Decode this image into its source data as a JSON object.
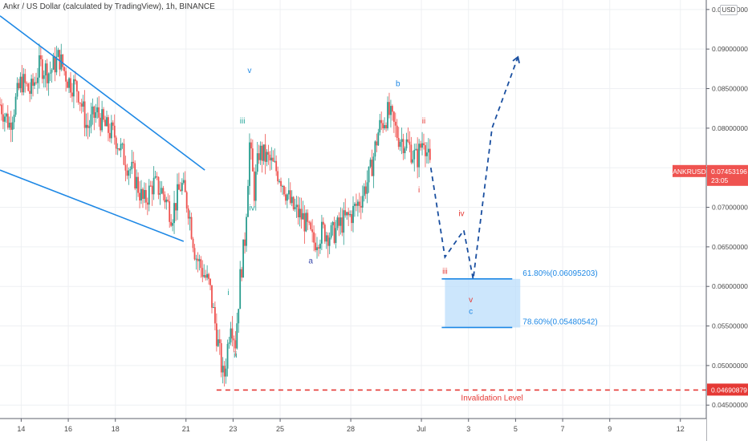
{
  "header": {
    "title": "Ankr / US Dollar (calculated by TradingView), 1h, BINANCE",
    "currency": "USD"
  },
  "colors": {
    "bull": "#2a9d8f",
    "bear": "#ef5350",
    "trend_line": "#1e88e5",
    "projection": "#1a4fa0",
    "invalidation": "#e53935",
    "fib_zone": "#bbdefb",
    "wave_red": "#e53935",
    "wave_blue": "#1e88e5",
    "wave_teal": "#26a69a",
    "wave_navy": "#3949ab"
  },
  "chart_data": {
    "type": "candlestick",
    "title": "Ankr / US Dollar (calculated by TradingView), 1h, BINANCE",
    "symbol": "ANKRUSD",
    "timeframe": "1h",
    "exchange": "BINANCE",
    "ylim": [
      0.0433,
      0.0962
    ],
    "price_ticks": [
      "0.09500000",
      "0.09000000",
      "0.08500000",
      "0.08000000",
      "0.07500000",
      "0.07000000",
      "0.06500000",
      "0.06000000",
      "0.05500000",
      "0.05000000",
      "0.04500000"
    ],
    "price_tick_values": [
      0.095,
      0.09,
      0.085,
      0.08,
      0.075,
      0.07,
      0.065,
      0.06,
      0.055,
      0.05,
      0.045
    ],
    "time_ticks": [
      "14",
      "16",
      "18",
      "21",
      "23",
      "25",
      "28",
      "Jul",
      "3",
      "5",
      "7",
      "9",
      "12"
    ],
    "time_tick_days": [
      14,
      16,
      18,
      21,
      23,
      25,
      28,
      31,
      33,
      35,
      37,
      39,
      42
    ],
    "x_domain_days": [
      13.1,
      43.1
    ],
    "current_price": {
      "value": 0.07453196,
      "label": "0.07453196",
      "countdown": "23:05",
      "symbol_label": "ANKRUSD"
    },
    "price_path": [
      [
        13.1,
        0.083
      ],
      [
        13.5,
        0.0805
      ],
      [
        14.0,
        0.086
      ],
      [
        14.4,
        0.0845
      ],
      [
        14.8,
        0.088
      ],
      [
        15.2,
        0.087
      ],
      [
        15.6,
        0.089
      ],
      [
        16.0,
        0.086
      ],
      [
        16.4,
        0.085
      ],
      [
        16.8,
        0.08
      ],
      [
        17.2,
        0.082
      ],
      [
        17.6,
        0.08
      ],
      [
        18.0,
        0.079
      ],
      [
        18.4,
        0.076
      ],
      [
        18.8,
        0.074
      ],
      [
        19.2,
        0.0705
      ],
      [
        19.6,
        0.073
      ],
      [
        20.0,
        0.072
      ],
      [
        20.4,
        0.069
      ],
      [
        20.8,
        0.073
      ],
      [
        21.1,
        0.07
      ],
      [
        21.4,
        0.064
      ],
      [
        21.7,
        0.062
      ],
      [
        22.0,
        0.06
      ],
      [
        22.3,
        0.054
      ],
      [
        22.6,
        0.048
      ],
      [
        22.9,
        0.056
      ],
      [
        23.1,
        0.053
      ],
      [
        23.3,
        0.061
      ],
      [
        23.5,
        0.066
      ],
      [
        23.7,
        0.078
      ],
      [
        23.9,
        0.072
      ],
      [
        24.1,
        0.077
      ],
      [
        24.5,
        0.076
      ],
      [
        25.0,
        0.074
      ],
      [
        25.5,
        0.07
      ],
      [
        26.0,
        0.0685
      ],
      [
        26.4,
        0.0655
      ],
      [
        26.8,
        0.067
      ],
      [
        27.2,
        0.0665
      ],
      [
        27.6,
        0.068
      ],
      [
        28.0,
        0.069
      ],
      [
        28.4,
        0.071
      ],
      [
        28.8,
        0.074
      ],
      [
        29.2,
        0.08
      ],
      [
        29.6,
        0.082
      ],
      [
        30.0,
        0.079
      ],
      [
        30.4,
        0.078
      ],
      [
        30.8,
        0.076
      ],
      [
        31.1,
        0.079
      ],
      [
        31.4,
        0.0745
      ]
    ],
    "trend_lines": [
      {
        "from": [
          13.1,
          0.0942
        ],
        "to": [
          21.8,
          0.0747
        ]
      },
      {
        "from": [
          13.1,
          0.0747
        ],
        "to": [
          20.9,
          0.0657
        ]
      }
    ],
    "projection_path": [
      [
        31.4,
        0.075
      ],
      [
        32.0,
        0.0637
      ],
      [
        32.8,
        0.0671
      ],
      [
        33.2,
        0.0609
      ],
      [
        34.0,
        0.08
      ],
      [
        35.1,
        0.089
      ]
    ],
    "fib_levels": [
      {
        "label": "61.80%(0.06095203)",
        "value": 0.06095203
      },
      {
        "label": "78.60%(0.05480542)",
        "value": 0.05480542
      }
    ],
    "fib_zone_days": [
      32.0,
      35.2
    ],
    "invalidation": {
      "value": 0.04690879,
      "label": "0.04690879",
      "text": "Invalidation Level"
    },
    "wave_labels": [
      {
        "text": "v",
        "day": 23.7,
        "value": 0.087,
        "color": "blue"
      },
      {
        "text": "iii",
        "day": 23.4,
        "value": 0.0806,
        "color": "teal"
      },
      {
        "text": "iv",
        "day": 23.8,
        "value": 0.0696,
        "color": "teal"
      },
      {
        "text": "i",
        "day": 22.8,
        "value": 0.0589,
        "color": "teal"
      },
      {
        "text": "ii",
        "day": 23.1,
        "value": 0.051,
        "color": "teal"
      },
      {
        "text": "a",
        "day": 26.3,
        "value": 0.0629,
        "color": "navy"
      },
      {
        "text": "b",
        "day": 30.0,
        "value": 0.0853,
        "color": "blue"
      },
      {
        "text": "ii",
        "day": 31.1,
        "value": 0.0806,
        "color": "red"
      },
      {
        "text": "i",
        "day": 30.9,
        "value": 0.0719,
        "color": "red"
      },
      {
        "text": "iii",
        "day": 32.0,
        "value": 0.0616,
        "color": "red"
      },
      {
        "text": "iv",
        "day": 32.7,
        "value": 0.0689,
        "color": "red"
      },
      {
        "text": "v",
        "day": 33.1,
        "value": 0.058,
        "color": "red"
      },
      {
        "text": "c",
        "day": 33.1,
        "value": 0.0565,
        "color": "blue"
      }
    ]
  }
}
